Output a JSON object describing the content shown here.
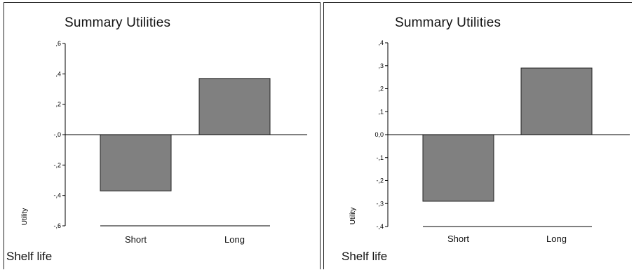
{
  "chart_data": [
    {
      "type": "bar",
      "title": "Summary Utilities",
      "ylabel": "Utility",
      "xlabel": "",
      "categories": [
        "Short",
        "Long"
      ],
      "values": [
        -0.37,
        0.37
      ],
      "ylim": [
        -0.6,
        0.6
      ],
      "yticks": [
        0.6,
        0.4,
        0.2,
        0,
        -0.2,
        -0.4,
        -0.6
      ],
      "ytick_labels": [
        ",6",
        ",4",
        ",2",
        "-,0",
        "-,2",
        "-,4",
        "-,6"
      ],
      "bar_color": "#808080",
      "grid": false,
      "footer": "Shelf life"
    },
    {
      "type": "bar",
      "title": "Summary Utilities",
      "ylabel": "Utility",
      "xlabel": "",
      "categories": [
        "Short",
        "Long"
      ],
      "values": [
        -0.29,
        0.29
      ],
      "ylim": [
        -0.4,
        0.4
      ],
      "yticks": [
        0.4,
        0.3,
        0.2,
        0.1,
        0,
        -0.1,
        -0.2,
        -0.3,
        -0.4
      ],
      "ytick_labels": [
        ",4",
        ",3",
        ",2",
        ",1",
        "0,0",
        "-,1",
        "-,2",
        "-,3",
        "-,4"
      ],
      "bar_color": "#808080",
      "grid": false,
      "footer": "Shelf life"
    }
  ]
}
